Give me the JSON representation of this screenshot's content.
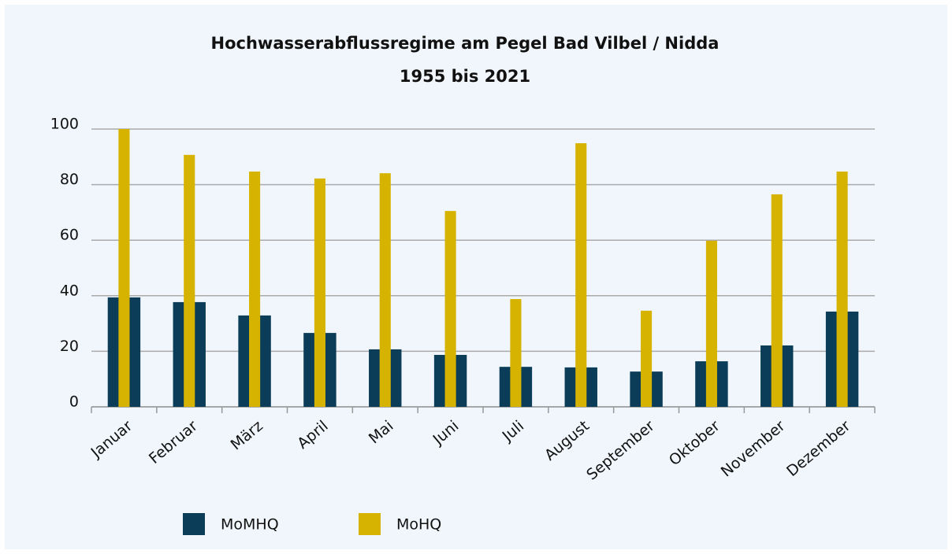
{
  "chart_data": {
    "type": "bar",
    "title": "Hochwasserabflussregime am Pegel Bad Vilbel / Nidda",
    "subtitle": "1955 bis 2021",
    "categories": [
      "Januar",
      "Februar",
      "März",
      "April",
      "Mai",
      "Juni",
      "Juli",
      "August",
      "September",
      "Oktober",
      "November",
      "Dezember"
    ],
    "series": [
      {
        "name": "MoMHQ",
        "color": "#0b3d58",
        "values": [
          39.4,
          37.7,
          32.9,
          26.6,
          20.7,
          18.7,
          14.4,
          14.2,
          12.7,
          16.4,
          22.1,
          34.3
        ]
      },
      {
        "name": "MoHQ",
        "color": "#d6b300",
        "values": [
          100,
          90.7,
          84.7,
          82.2,
          84.1,
          70.5,
          38.8,
          94.9,
          34.6,
          59.8,
          76.5,
          84.7
        ]
      }
    ],
    "ylim": [
      0,
      100
    ],
    "yticks": [
      0,
      20,
      40,
      60,
      80,
      100
    ],
    "grid": true,
    "legend": "bottom"
  }
}
